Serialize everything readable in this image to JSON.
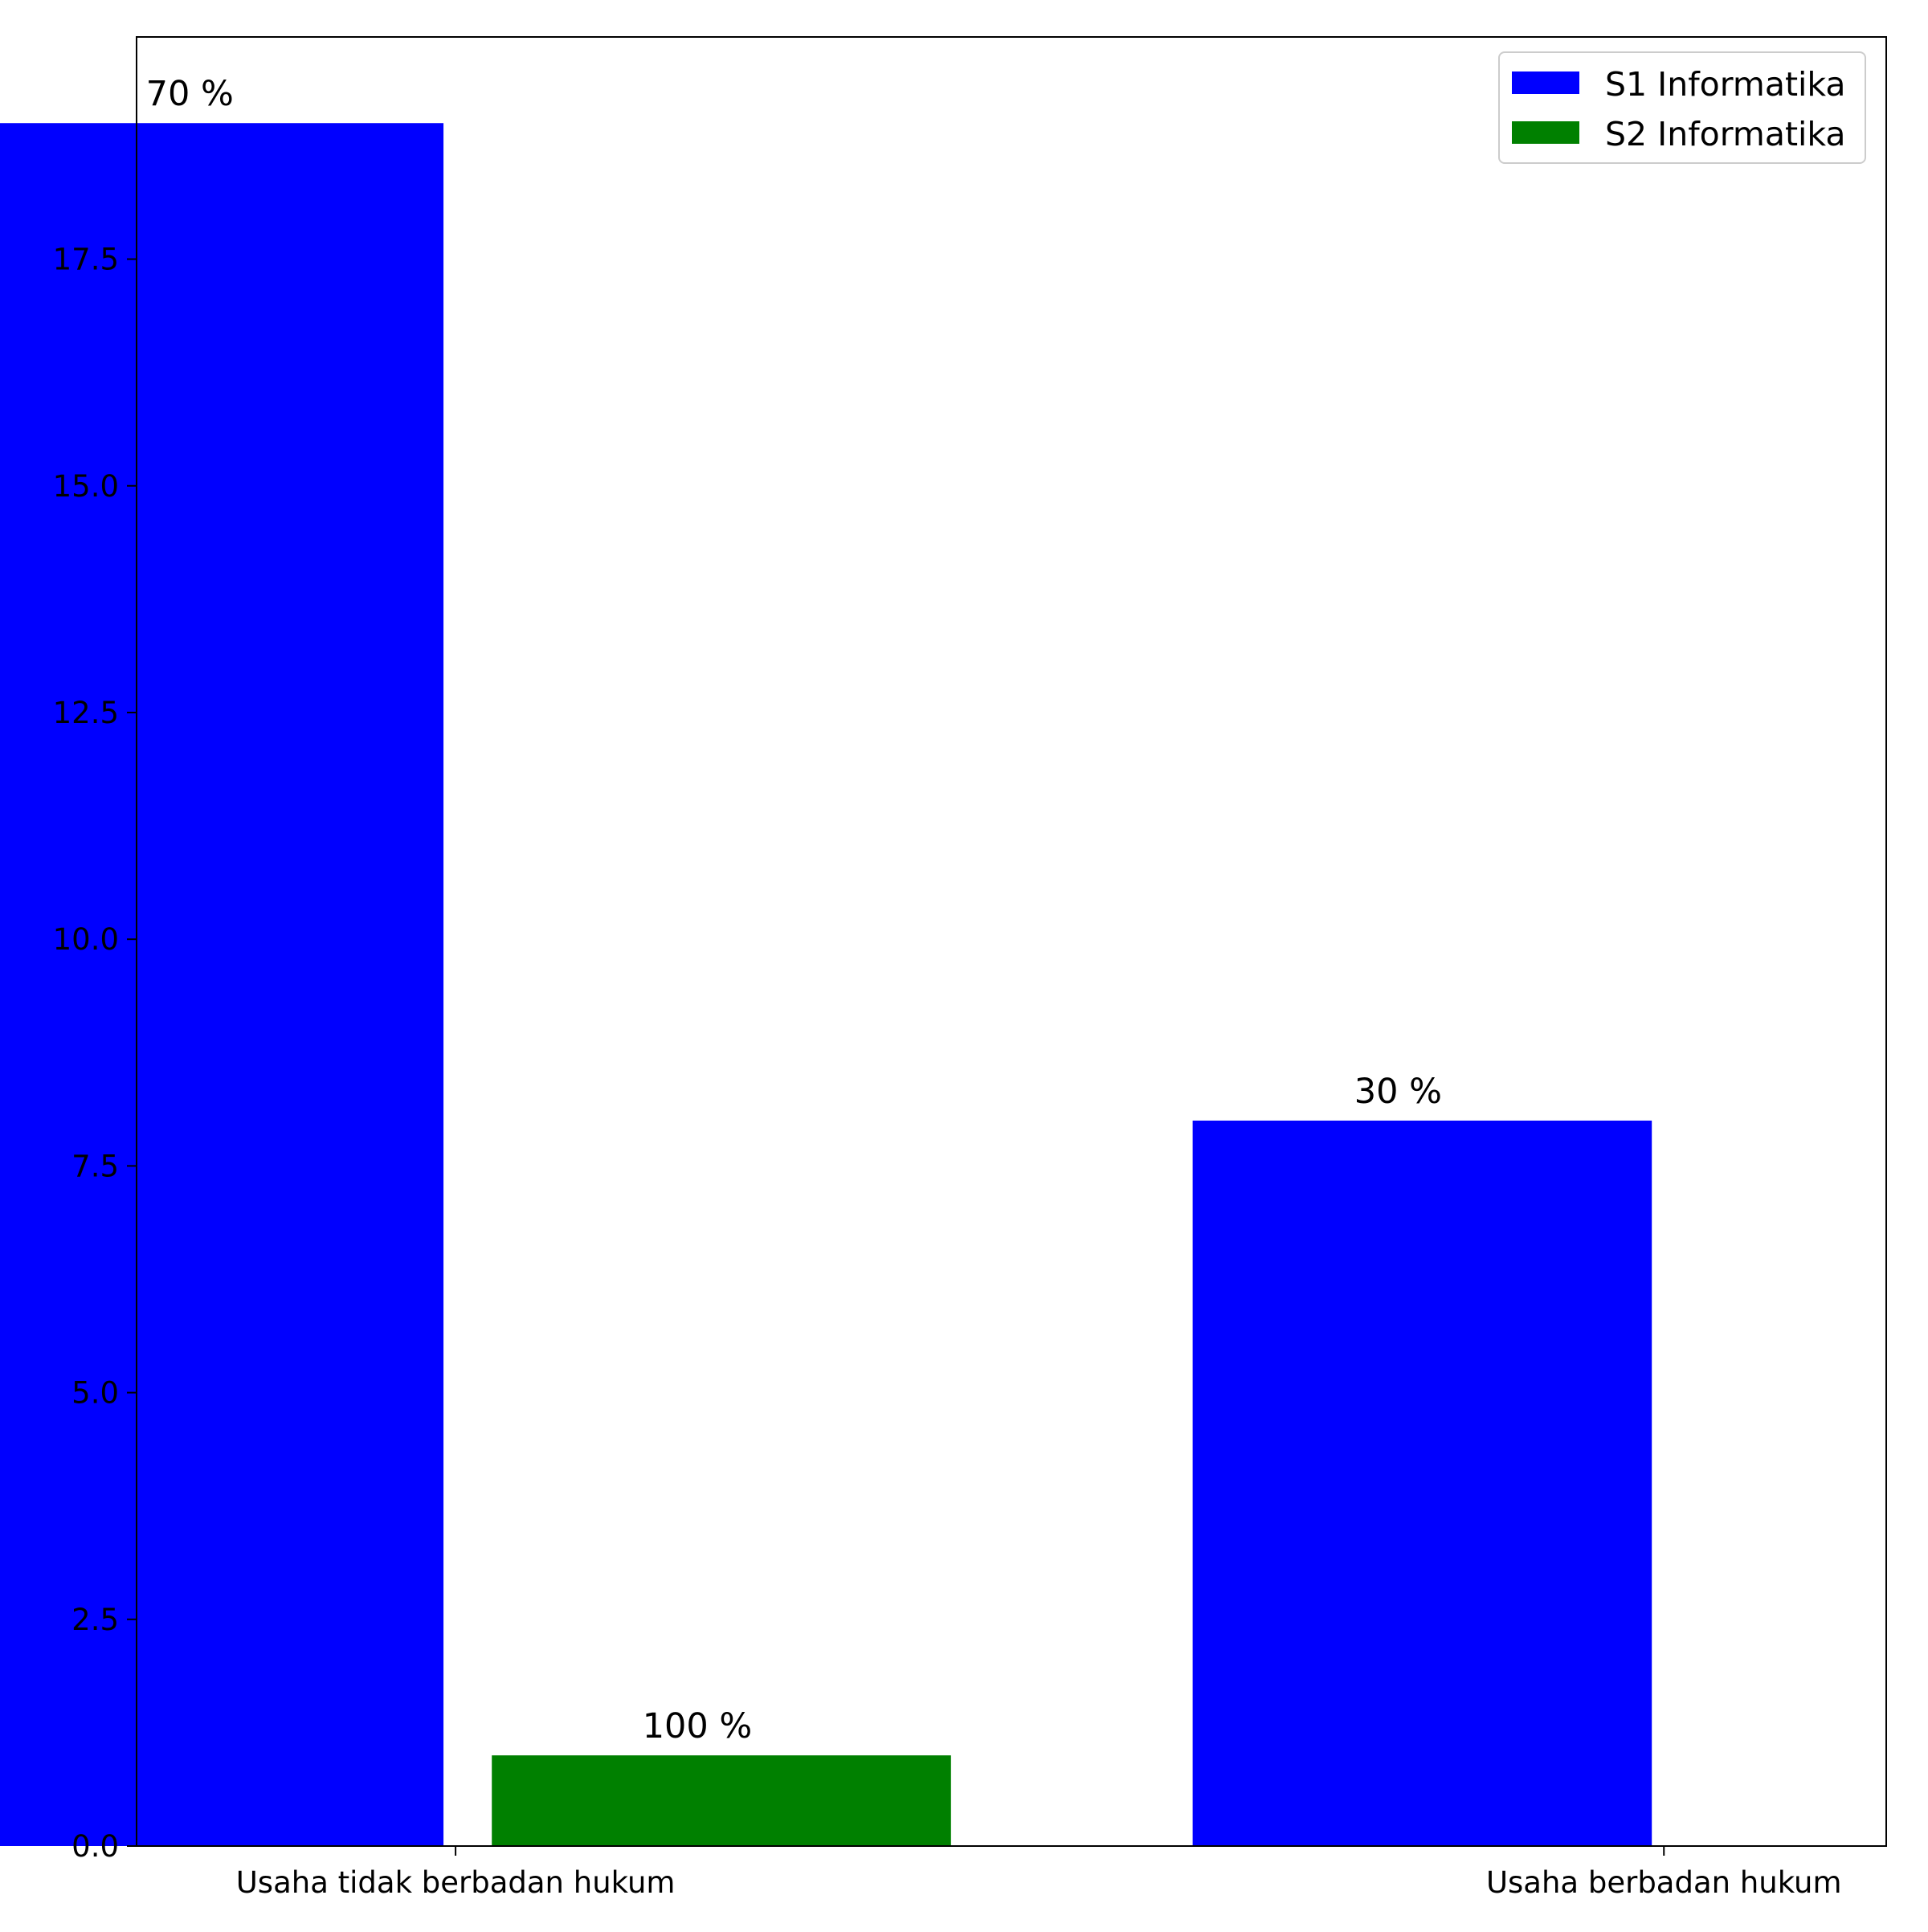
{
  "chart_data": {
    "type": "bar",
    "categories": [
      "Usaha tidak berbadan hukum",
      "Usaha berbadan hukum"
    ],
    "series": [
      {
        "name": "S1 Informatika",
        "color": "#0000ff",
        "values": [
          19,
          8
        ],
        "labels": [
          "70 %",
          "30 %"
        ]
      },
      {
        "name": "S2 Informatika",
        "color": "#008000",
        "values": [
          1,
          null
        ],
        "labels": [
          "100 %",
          null
        ]
      }
    ],
    "title": "",
    "xlabel": "",
    "ylabel": "",
    "ylim": [
      0,
      19.95
    ],
    "yticks": [
      0.0,
      2.5,
      5.0,
      7.5,
      10.0,
      12.5,
      15.0,
      17.5
    ],
    "ytick_labels": [
      "0.0",
      "2.5",
      "5.0",
      "7.5",
      "10.0",
      "12.5",
      "15.0",
      "17.5"
    ],
    "grid": false,
    "legend_position": "top-right"
  }
}
